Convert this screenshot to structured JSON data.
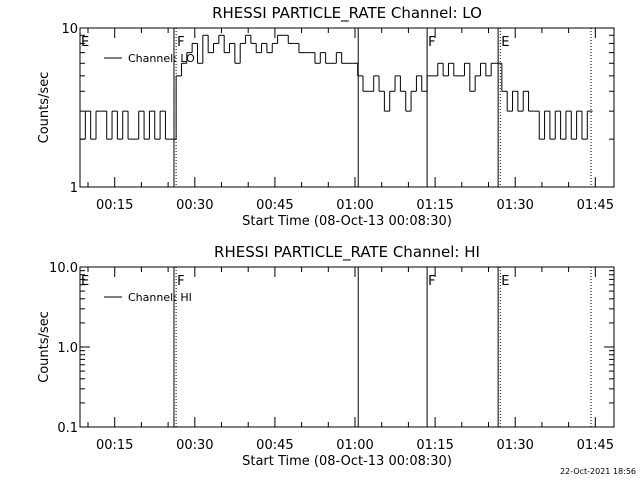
{
  "chart_data": [
    {
      "type": "line",
      "title": "RHESSI PARTICLE_RATE Channel: LO",
      "x_label": "Start Time (08-Oct-13 00:08:30)",
      "y_label": "Counts/sec",
      "log_y": true,
      "ylim": [
        1,
        10
      ],
      "yticks": [
        1,
        10
      ],
      "yminorticks": [
        2,
        3,
        4,
        5,
        6,
        7,
        8,
        9
      ],
      "xlim": [
        8.5,
        108.5
      ],
      "xticks": [
        {
          "value": 15,
          "label": "00:15"
        },
        {
          "value": 30,
          "label": "00:30"
        },
        {
          "value": 45,
          "label": "00:45"
        },
        {
          "value": 60,
          "label": "01:00"
        },
        {
          "value": 75,
          "label": "01:15"
        },
        {
          "value": 90,
          "label": "01:30"
        },
        {
          "value": 105,
          "label": "01:45"
        }
      ],
      "xminorticks": [
        10,
        20,
        25,
        35,
        40,
        50,
        55,
        65,
        70,
        80,
        85,
        95,
        100
      ],
      "legend": "top-left",
      "drawstyle": "steps",
      "vlines": [
        {
          "x": 26.1,
          "style": "solid"
        },
        {
          "x": 26.5,
          "style": "dotted"
        },
        {
          "x": 60.6,
          "style": "solid"
        },
        {
          "x": 73.5,
          "style": "solid"
        },
        {
          "x": 86.8,
          "style": "solid"
        },
        {
          "x": 87.2,
          "style": "dotted"
        },
        {
          "x": 104.2,
          "style": "dotted"
        }
      ],
      "markers": [
        {
          "x": 8.5,
          "label": "E"
        },
        {
          "x": 26.5,
          "label": "F"
        },
        {
          "x": 73.5,
          "label": "F"
        },
        {
          "x": 87.2,
          "label": "E"
        }
      ],
      "x": [
        9,
        10,
        11,
        12,
        13,
        14,
        15,
        16,
        17,
        18,
        19,
        20,
        21,
        22,
        23,
        24,
        25,
        26,
        27,
        28,
        29,
        30,
        31,
        32,
        33,
        34,
        35,
        36,
        37,
        38,
        39,
        40,
        41,
        42,
        43,
        44,
        45,
        46,
        47,
        48,
        49,
        50,
        51,
        52,
        53,
        54,
        55,
        56,
        57,
        58,
        59,
        60,
        61,
        62,
        63,
        64,
        65,
        66,
        67,
        68,
        69,
        70,
        71,
        72,
        73,
        74,
        75,
        76,
        77,
        78,
        79,
        80,
        81,
        82,
        83,
        84,
        85,
        86,
        87,
        88,
        89,
        90,
        91,
        92,
        93,
        94,
        95,
        96,
        97,
        98,
        99,
        100,
        101,
        102,
        103,
        104
      ],
      "series": [
        {
          "name": "Channel: LO",
          "color": "#000000",
          "values": [
            2,
            3,
            2,
            3,
            3,
            2,
            3,
            2,
            3,
            2,
            2,
            3,
            2,
            3,
            2,
            3,
            2,
            2,
            5,
            6,
            7,
            8,
            6,
            9,
            7,
            8,
            9,
            7,
            8,
            6,
            8,
            9,
            8,
            7,
            8,
            7,
            8,
            9,
            9,
            8,
            8,
            7,
            7,
            7,
            6,
            7,
            6,
            6,
            7,
            6,
            6,
            6,
            5,
            4,
            4,
            5,
            4,
            3,
            4,
            5,
            4,
            3,
            4,
            5,
            4,
            5,
            5,
            6,
            5,
            6,
            5,
            5,
            6,
            4,
            5,
            6,
            5,
            6,
            6,
            4,
            3,
            4,
            3,
            4,
            3,
            3,
            2,
            3,
            2,
            3,
            2,
            3,
            2,
            3,
            2,
            3
          ]
        }
      ]
    },
    {
      "type": "line",
      "title": "RHESSI PARTICLE_RATE Channel: HI",
      "x_label": "Start Time (08-Oct-13 00:08:30)",
      "y_label": "Counts/sec",
      "log_y": true,
      "ylim": [
        0.1,
        10
      ],
      "yticks": [
        0.1,
        {
          "value": 1,
          "label": "1.0"
        },
        {
          "value": 10,
          "label": "10.0"
        }
      ],
      "yminorticks": [
        0.2,
        0.3,
        0.4,
        0.5,
        0.6,
        0.7,
        0.8,
        0.9,
        2,
        3,
        4,
        5,
        6,
        7,
        8,
        9
      ],
      "xlim": [
        8.5,
        108.5
      ],
      "xticks": [
        {
          "value": 15,
          "label": "00:15"
        },
        {
          "value": 30,
          "label": "00:30"
        },
        {
          "value": 45,
          "label": "00:45"
        },
        {
          "value": 60,
          "label": "01:00"
        },
        {
          "value": 75,
          "label": "01:15"
        },
        {
          "value": 90,
          "label": "01:30"
        },
        {
          "value": 105,
          "label": "01:45"
        }
      ],
      "xminorticks": [
        10,
        20,
        25,
        35,
        40,
        50,
        55,
        65,
        70,
        80,
        85,
        95,
        100
      ],
      "legend": "top-left",
      "drawstyle": "steps",
      "vlines": [
        {
          "x": 26.1,
          "style": "solid"
        },
        {
          "x": 26.5,
          "style": "dotted"
        },
        {
          "x": 60.6,
          "style": "solid"
        },
        {
          "x": 73.5,
          "style": "solid"
        },
        {
          "x": 86.8,
          "style": "solid"
        },
        {
          "x": 87.2,
          "style": "dotted"
        },
        {
          "x": 104.2,
          "style": "dotted"
        }
      ],
      "markers": [
        {
          "x": 8.5,
          "label": "E"
        },
        {
          "x": 26.5,
          "label": "F"
        },
        {
          "x": 73.5,
          "label": "F"
        },
        {
          "x": 87.2,
          "label": "E"
        }
      ],
      "x": [],
      "series": [
        {
          "name": "Channel: HI",
          "color": "#000000",
          "values": []
        }
      ]
    }
  ],
  "footer": "22-Oct-2021 18:56"
}
